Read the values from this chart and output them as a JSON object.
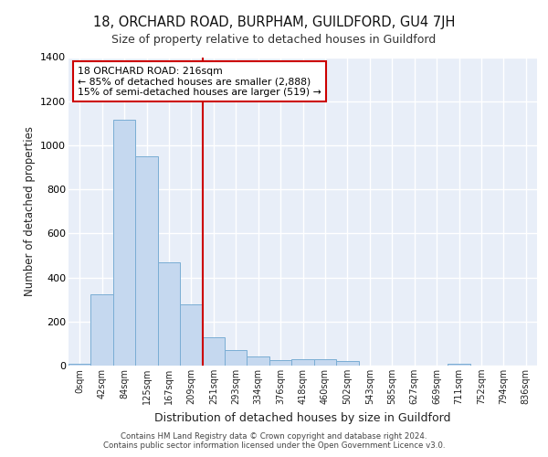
{
  "title": "18, ORCHARD ROAD, BURPHAM, GUILDFORD, GU4 7JH",
  "subtitle": "Size of property relative to detached houses in Guildford",
  "xlabel": "Distribution of detached houses by size in Guildford",
  "ylabel": "Number of detached properties",
  "categories": [
    "0sqm",
    "42sqm",
    "84sqm",
    "125sqm",
    "167sqm",
    "209sqm",
    "251sqm",
    "293sqm",
    "334sqm",
    "376sqm",
    "418sqm",
    "460sqm",
    "502sqm",
    "543sqm",
    "585sqm",
    "627sqm",
    "669sqm",
    "711sqm",
    "752sqm",
    "794sqm",
    "836sqm"
  ],
  "values": [
    10,
    325,
    1115,
    950,
    468,
    280,
    130,
    70,
    42,
    25,
    27,
    27,
    20,
    0,
    0,
    0,
    0,
    10,
    0,
    0,
    0
  ],
  "bar_color": "#c5d8ef",
  "bar_edge_color": "#7aadd4",
  "vline_color": "#cc0000",
  "vline_pos": 5.5,
  "annotation_line1": "18 ORCHARD ROAD: 216sqm",
  "annotation_line2": "← 85% of detached houses are smaller (2,888)",
  "annotation_line3": "15% of semi-detached houses are larger (519) →",
  "annotation_box_color": "#cc0000",
  "ylim": [
    0,
    1400
  ],
  "yticks": [
    0,
    200,
    400,
    600,
    800,
    1000,
    1200,
    1400
  ],
  "background_color": "#e8eef8",
  "grid_color": "#ffffff",
  "footer_line1": "Contains HM Land Registry data © Crown copyright and database right 2024.",
  "footer_line2": "Contains public sector information licensed under the Open Government Licence v3.0."
}
